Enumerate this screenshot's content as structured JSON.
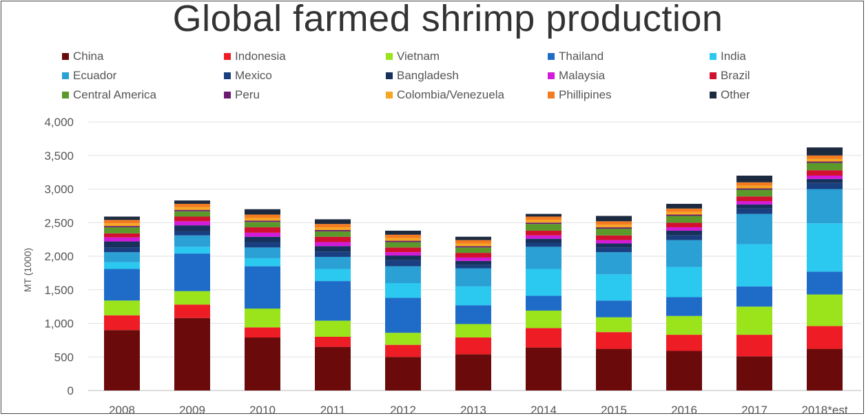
{
  "chart_data": {
    "type": "bar",
    "stacked": true,
    "title": "Global farmed shrimp production",
    "xlabel": "",
    "ylabel": "MT (1000)",
    "ylim": [
      0,
      4000
    ],
    "yticks": [
      "0",
      "500",
      "1,000",
      "1,500",
      "2,000",
      "2,500",
      "3,000",
      "3,500",
      "4,000"
    ],
    "grid": true,
    "legend_position": "top",
    "categories": [
      "2008",
      "2009",
      "2010",
      "2011",
      "2012",
      "2013",
      "2014",
      "2015",
      "2016",
      "2017",
      "2018*est"
    ],
    "series": [
      {
        "name": "China",
        "color": "#6b0a0a",
        "values": [
          900,
          1080,
          790,
          650,
          500,
          540,
          640,
          620,
          590,
          510,
          620
        ]
      },
      {
        "name": "Indonesia",
        "color": "#ee1c25",
        "values": [
          220,
          200,
          150,
          150,
          180,
          250,
          290,
          250,
          240,
          320,
          340
        ]
      },
      {
        "name": "Vietnam",
        "color": "#9be31b",
        "values": [
          220,
          200,
          280,
          240,
          180,
          200,
          260,
          220,
          280,
          420,
          470
        ]
      },
      {
        "name": "Thailand",
        "color": "#1f6cc8",
        "values": [
          470,
          560,
          630,
          590,
          520,
          280,
          220,
          250,
          280,
          300,
          340
        ]
      },
      {
        "name": "India",
        "color": "#2bc8f0",
        "values": [
          100,
          100,
          120,
          180,
          220,
          280,
          400,
          390,
          450,
          630,
          720
        ]
      },
      {
        "name": "Ecuador",
        "color": "#2aa0d5",
        "values": [
          150,
          170,
          160,
          180,
          250,
          270,
          330,
          330,
          400,
          450,
          510
        ]
      },
      {
        "name": "Mexico",
        "color": "#1a3f80",
        "values": [
          70,
          60,
          80,
          80,
          90,
          50,
          60,
          70,
          70,
          80,
          90
        ]
      },
      {
        "name": "Bangladesh",
        "color": "#16325c",
        "values": [
          90,
          90,
          80,
          80,
          70,
          60,
          60,
          60,
          70,
          60,
          60
        ]
      },
      {
        "name": "Malaysia",
        "color": "#d21bd8",
        "values": [
          60,
          60,
          60,
          60,
          50,
          50,
          50,
          50,
          50,
          50,
          50
        ]
      },
      {
        "name": "Brazil",
        "color": "#d0102e",
        "values": [
          60,
          70,
          80,
          80,
          70,
          70,
          70,
          70,
          70,
          70,
          80
        ]
      },
      {
        "name": "Central America",
        "color": "#5b9a2a",
        "values": [
          90,
          80,
          80,
          80,
          80,
          80,
          100,
          100,
          100,
          100,
          110
        ]
      },
      {
        "name": "Peru",
        "color": "#6a1b70",
        "values": [
          20,
          20,
          20,
          20,
          20,
          20,
          20,
          20,
          20,
          20,
          20
        ]
      },
      {
        "name": "Colombia/Venezuela",
        "color": "#f5a623",
        "values": [
          40,
          40,
          40,
          40,
          40,
          40,
          40,
          40,
          40,
          40,
          40
        ]
      },
      {
        "name": "Phillipines",
        "color": "#f47b20",
        "values": [
          50,
          50,
          50,
          50,
          50,
          50,
          50,
          50,
          50,
          50,
          50
        ]
      },
      {
        "name": "Other",
        "color": "#1c2a40",
        "values": [
          50,
          50,
          80,
          70,
          60,
          50,
          40,
          80,
          70,
          100,
          120
        ]
      }
    ]
  }
}
